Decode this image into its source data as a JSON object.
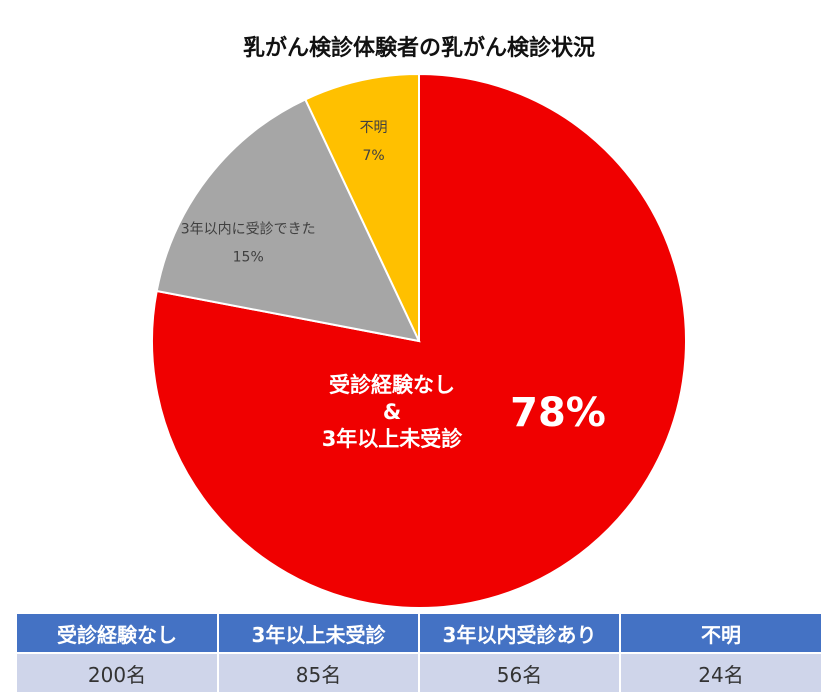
{
  "chart_data": {
    "type": "pie",
    "title": "乳がん検診体験者の乳がん検診状況",
    "slices": [
      {
        "label_lines": [
          "受診経験なし",
          "&",
          "3年以上未受診"
        ],
        "value": 78,
        "pct_label": "78%",
        "color": "#f00000"
      },
      {
        "label_lines": [
          "3年以内に受診できた"
        ],
        "value": 15,
        "pct_label": "15%",
        "color": "#a6a6a6"
      },
      {
        "label_lines": [
          "不明"
        ],
        "value": 7,
        "pct_label": "7%",
        "color": "#ffc000"
      }
    ]
  },
  "table": {
    "headers": [
      "受診経験なし",
      "3年以上未受診",
      "3年以内受診あり",
      "不明"
    ],
    "values": [
      "200名",
      "85名",
      "56名",
      "24名"
    ]
  }
}
